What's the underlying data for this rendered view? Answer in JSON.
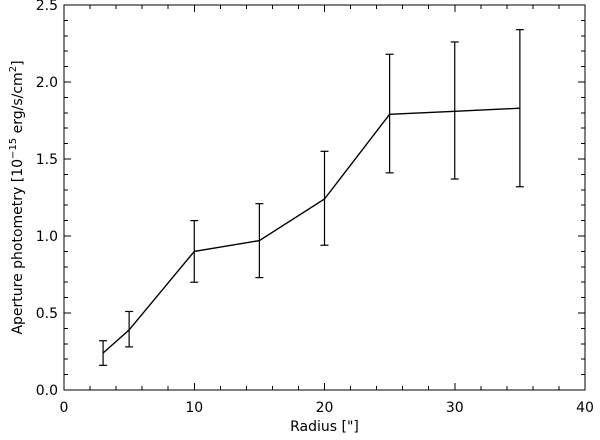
{
  "chart_data": {
    "type": "line",
    "xlabel": "Radius [\"]",
    "ylabel_main": "Aperture photometry [10",
    "ylabel_exp": "−15",
    "ylabel_units": " erg/s/cm",
    "ylabel_sq": "2",
    "ylabel_end": "]",
    "xlim": [
      0,
      40
    ],
    "ylim": [
      0,
      2.5
    ],
    "xticks": [
      0,
      10,
      20,
      30,
      40
    ],
    "xtick_labels": [
      "0",
      "10",
      "20",
      "30",
      "40"
    ],
    "yticks": [
      0,
      0.5,
      1.0,
      1.5,
      2.0,
      2.5
    ],
    "ytick_labels": [
      "0.0",
      "0.5",
      "1.0",
      "1.5",
      "2.0",
      "2.5"
    ],
    "grid": false,
    "series": [
      {
        "x": [
          3,
          5,
          10,
          15,
          20,
          25,
          30,
          35
        ],
        "y": [
          0.24,
          0.39,
          0.9,
          0.97,
          1.24,
          1.79,
          1.81,
          1.83
        ],
        "err_low": [
          0.16,
          0.28,
          0.7,
          0.73,
          0.94,
          1.41,
          1.37,
          1.32
        ],
        "err_high": [
          0.32,
          0.51,
          1.1,
          1.21,
          1.55,
          2.18,
          2.26,
          2.34
        ]
      }
    ]
  }
}
